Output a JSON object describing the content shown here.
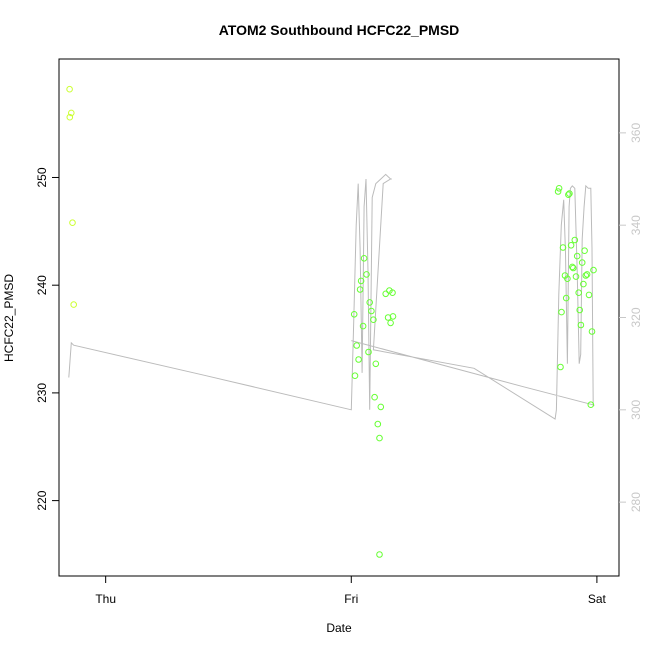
{
  "chart_data": {
    "type": "scatter",
    "title": "ATOM2 Southbound HCFC22_PMSD",
    "xlabel": "Date",
    "ylabel": "HCFC22_PMSD",
    "x_unit": "days",
    "xlim": [
      -0.19,
      2.09
    ],
    "x_ticks": [
      {
        "value": 0,
        "label": "Thu"
      },
      {
        "value": 1,
        "label": "Fri"
      },
      {
        "value": 2,
        "label": "Sat"
      }
    ],
    "ylim": [
      213.0,
      261.0
    ],
    "y_ticks": [
      220,
      230,
      240,
      250
    ],
    "y2lim": [
      264.0,
      376.0
    ],
    "y2_ticks": [
      280,
      300,
      320,
      340,
      360
    ],
    "grid": false,
    "colors": {
      "points_early": "#ccff33",
      "points_late": "#66ff33",
      "line": "#bbbbbb",
      "axis": "#000000",
      "right_axis": "#c8c8c8"
    },
    "series": [
      {
        "type": "scatter",
        "axis": "left",
        "points": [
          {
            "x": -0.147,
            "y": 258.2
          },
          {
            "x": -0.146,
            "y": 255.6
          },
          {
            "x": -0.14,
            "y": 256.0
          },
          {
            "x": -0.135,
            "y": 245.8
          },
          {
            "x": -0.13,
            "y": 238.2
          },
          {
            "x": 1.012,
            "y": 237.3
          },
          {
            "x": 1.015,
            "y": 231.6
          },
          {
            "x": 1.022,
            "y": 234.4
          },
          {
            "x": 1.03,
            "y": 233.1
          },
          {
            "x": 1.036,
            "y": 239.6
          },
          {
            "x": 1.04,
            "y": 240.4
          },
          {
            "x": 1.048,
            "y": 236.2
          },
          {
            "x": 1.052,
            "y": 242.5
          },
          {
            "x": 1.062,
            "y": 241.0
          },
          {
            "x": 1.07,
            "y": 233.8
          },
          {
            "x": 1.075,
            "y": 238.4
          },
          {
            "x": 1.082,
            "y": 237.6
          },
          {
            "x": 1.09,
            "y": 236.8
          },
          {
            "x": 1.095,
            "y": 229.6
          },
          {
            "x": 1.1,
            "y": 232.7
          },
          {
            "x": 1.108,
            "y": 227.1
          },
          {
            "x": 1.115,
            "y": 225.8
          },
          {
            "x": 1.12,
            "y": 228.7
          },
          {
            "x": 1.115,
            "y": 215.0
          },
          {
            "x": 1.14,
            "y": 239.2
          },
          {
            "x": 1.15,
            "y": 237.0
          },
          {
            "x": 1.155,
            "y": 239.5
          },
          {
            "x": 1.16,
            "y": 236.5
          },
          {
            "x": 1.168,
            "y": 239.3
          },
          {
            "x": 1.17,
            "y": 237.1
          },
          {
            "x": 1.842,
            "y": 248.7
          },
          {
            "x": 1.846,
            "y": 249.0
          },
          {
            "x": 1.852,
            "y": 232.4
          },
          {
            "x": 1.856,
            "y": 237.5
          },
          {
            "x": 1.862,
            "y": 243.5
          },
          {
            "x": 1.87,
            "y": 240.9
          },
          {
            "x": 1.875,
            "y": 238.8
          },
          {
            "x": 1.88,
            "y": 240.6
          },
          {
            "x": 1.884,
            "y": 248.4
          },
          {
            "x": 1.888,
            "y": 248.5
          },
          {
            "x": 1.895,
            "y": 243.7
          },
          {
            "x": 1.9,
            "y": 241.7
          },
          {
            "x": 1.904,
            "y": 241.6
          },
          {
            "x": 1.91,
            "y": 244.2
          },
          {
            "x": 1.915,
            "y": 240.8
          },
          {
            "x": 1.92,
            "y": 242.7
          },
          {
            "x": 1.926,
            "y": 239.3
          },
          {
            "x": 1.93,
            "y": 237.7
          },
          {
            "x": 1.935,
            "y": 236.3
          },
          {
            "x": 1.94,
            "y": 242.1
          },
          {
            "x": 1.945,
            "y": 240.1
          },
          {
            "x": 1.95,
            "y": 243.2
          },
          {
            "x": 1.955,
            "y": 240.9
          },
          {
            "x": 1.96,
            "y": 241.0
          },
          {
            "x": 1.968,
            "y": 239.1
          },
          {
            "x": 1.975,
            "y": 228.9
          },
          {
            "x": 1.98,
            "y": 235.7
          },
          {
            "x": 1.986,
            "y": 241.4
          }
        ]
      },
      {
        "type": "line",
        "axis": "right",
        "points": [
          {
            "x": -0.15,
            "y": 307.0
          },
          {
            "x": -0.14,
            "y": 314.5
          },
          {
            "x": -0.13,
            "y": 314.0
          },
          {
            "x": 0.4,
            "y": 307.5
          },
          {
            "x": 1.0,
            "y": 300.0
          },
          {
            "x": 1.01,
            "y": 319.0
          },
          {
            "x": 1.02,
            "y": 340.0
          },
          {
            "x": 1.028,
            "y": 349.0
          },
          {
            "x": 1.036,
            "y": 335.0
          },
          {
            "x": 1.044,
            "y": 308.0
          },
          {
            "x": 1.052,
            "y": 344.0
          },
          {
            "x": 1.06,
            "y": 350.0
          },
          {
            "x": 1.068,
            "y": 330.0
          },
          {
            "x": 1.075,
            "y": 300.0
          },
          {
            "x": 1.085,
            "y": 346.0
          },
          {
            "x": 1.1,
            "y": 349.0
          },
          {
            "x": 1.12,
            "y": 350.0
          },
          {
            "x": 1.14,
            "y": 351.0
          },
          {
            "x": 1.15,
            "y": 350.5
          },
          {
            "x": 1.16,
            "y": 350.0
          },
          {
            "x": 1.165,
            "y": 350.0
          },
          {
            "x": 1.16,
            "y": 350.0
          },
          {
            "x": 1.13,
            "y": 349.0
          },
          {
            "x": 1.09,
            "y": 313.0
          },
          {
            "x": 1.5,
            "y": 309.0
          },
          {
            "x": 1.83,
            "y": 298.0
          },
          {
            "x": 1.835,
            "y": 300.0
          },
          {
            "x": 1.845,
            "y": 325.0
          },
          {
            "x": 1.855,
            "y": 340.0
          },
          {
            "x": 1.865,
            "y": 345.5
          },
          {
            "x": 1.872,
            "y": 334.0
          },
          {
            "x": 1.88,
            "y": 310.0
          },
          {
            "x": 1.887,
            "y": 344.0
          },
          {
            "x": 1.892,
            "y": 348.0
          },
          {
            "x": 1.9,
            "y": 348.5
          },
          {
            "x": 1.91,
            "y": 348.0
          },
          {
            "x": 1.92,
            "y": 330.0
          },
          {
            "x": 1.928,
            "y": 310.0
          },
          {
            "x": 1.934,
            "y": 312.0
          },
          {
            "x": 1.94,
            "y": 337.0
          },
          {
            "x": 1.948,
            "y": 344.0
          },
          {
            "x": 1.955,
            "y": 348.5
          },
          {
            "x": 1.965,
            "y": 348.0
          },
          {
            "x": 1.975,
            "y": 348.0
          },
          {
            "x": 1.98,
            "y": 335.0
          },
          {
            "x": 1.985,
            "y": 301.0
          },
          {
            "x": 1.99,
            "y": 301.0
          },
          {
            "x": 1.7,
            "y": 305.0
          },
          {
            "x": 1.0,
            "y": 315.0
          }
        ]
      }
    ]
  }
}
